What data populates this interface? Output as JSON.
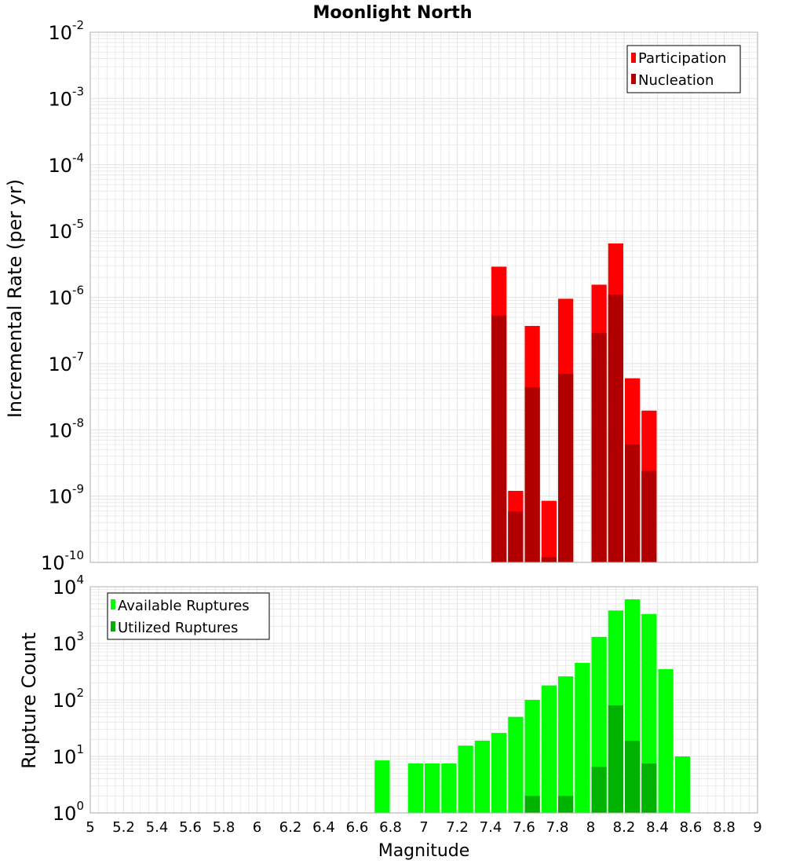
{
  "chart_data": [
    {
      "type": "bar",
      "title": "Moonlight North",
      "ylabel": "Incremental Rate (per yr)",
      "xlabel": "",
      "yscale": "log",
      "ylim": [
        1e-10,
        0.01
      ],
      "xlim": [
        5,
        9
      ],
      "bin_width": 0.1,
      "grid": true,
      "legend": "top-right",
      "series": [
        {
          "name": "Participation",
          "color": "#ff0000",
          "x": [
            7.45,
            7.55,
            7.65,
            7.75,
            7.85,
            8.05,
            8.15,
            8.25,
            8.35
          ],
          "values": [
            2.9e-06,
            1.2e-09,
            3.7e-07,
            8.5e-10,
            9.5e-07,
            1.55e-06,
            6.5e-06,
            6e-08,
            1.95e-08
          ]
        },
        {
          "name": "Nucleation",
          "color": "#b20000",
          "x": [
            7.45,
            7.55,
            7.65,
            7.75,
            7.85,
            8.05,
            8.15,
            8.25,
            8.35
          ],
          "values": [
            5.3e-07,
            5.9e-10,
            4.4e-08,
            1.2e-10,
            7e-08,
            2.9e-07,
            1.1e-06,
            6e-09,
            2.4e-09
          ]
        }
      ]
    },
    {
      "type": "bar",
      "title": "",
      "ylabel": "Rupture Count",
      "xlabel": "Magnitude",
      "yscale": "log",
      "ylim": [
        1,
        10000
      ],
      "xlim": [
        5,
        9
      ],
      "bin_width": 0.1,
      "grid": true,
      "legend": "top-left",
      "series": [
        {
          "name": "Available Ruptures",
          "color": "#00ff00",
          "x": [
            6.75,
            6.95,
            7.05,
            7.15,
            7.25,
            7.35,
            7.45,
            7.55,
            7.65,
            7.75,
            7.85,
            7.95,
            8.05,
            8.15,
            8.25,
            8.35,
            8.45,
            8.55
          ],
          "values": [
            8.5,
            7.5,
            7.5,
            7.5,
            15.5,
            19,
            26,
            50,
            100,
            180,
            260,
            450,
            1300,
            3800,
            6000,
            3300,
            350,
            10
          ]
        },
        {
          "name": "Utilized Ruptures",
          "color": "#00b200",
          "x": [
            7.45,
            7.55,
            7.65,
            7.75,
            7.85,
            7.95,
            8.05,
            8.15,
            8.25,
            8.35
          ],
          "values": [
            1,
            1,
            2,
            1,
            2,
            1,
            6.5,
            80,
            19,
            7.5
          ]
        }
      ],
      "xticks": [
        "5",
        "5.2",
        "5.4",
        "5.6",
        "5.8",
        "6",
        "6.2",
        "6.4",
        "6.6",
        "6.8",
        "7",
        "7.2",
        "7.4",
        "7.6",
        "7.8",
        "8",
        "8.2",
        "8.4",
        "8.6",
        "8.8",
        "9"
      ]
    }
  ],
  "yticks_top": [
    {
      "base": "10",
      "exp": "-10",
      "value": 1e-10
    },
    {
      "base": "10",
      "exp": "-9",
      "value": 1e-09
    },
    {
      "base": "10",
      "exp": "-8",
      "value": 1e-08
    },
    {
      "base": "10",
      "exp": "-7",
      "value": 1e-07
    },
    {
      "base": "10",
      "exp": "-6",
      "value": 1e-06
    },
    {
      "base": "10",
      "exp": "-5",
      "value": 1e-05
    },
    {
      "base": "10",
      "exp": "-4",
      "value": 0.0001
    },
    {
      "base": "10",
      "exp": "-3",
      "value": 0.001
    },
    {
      "base": "10",
      "exp": "-2",
      "value": 0.01
    }
  ],
  "yticks_bottom": [
    {
      "base": "10",
      "exp": "0",
      "value": 1
    },
    {
      "base": "10",
      "exp": "1",
      "value": 10
    },
    {
      "base": "10",
      "exp": "2",
      "value": 100
    },
    {
      "base": "10",
      "exp": "3",
      "value": 1000
    },
    {
      "base": "10",
      "exp": "4",
      "value": 10000
    }
  ],
  "colors": {
    "grid": "#e6e6e6",
    "frame": "#b0b0b0"
  }
}
